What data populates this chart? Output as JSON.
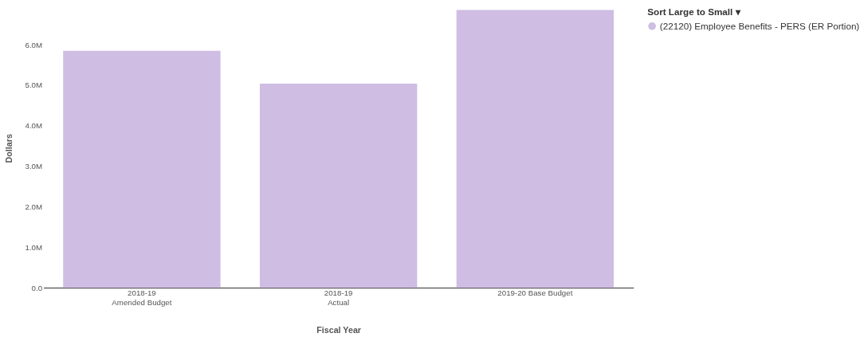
{
  "chart_data": {
    "type": "bar",
    "xlabel": "Fiscal Year",
    "ylabel": "Dollars",
    "legend_title": "Sort Large to Small ▾",
    "categories": [
      "2018-19\nAmended Budget",
      "2018-19\nActual",
      "2019-20 Base Budget"
    ],
    "series": [
      {
        "name": "(22120) Employee Benefits - PERS (ER Portion)",
        "color": "#cfbde3",
        "values": [
          5850000,
          5040000,
          6860000
        ]
      }
    ],
    "ylim": [
      0,
      6900000
    ],
    "yticks": [
      {
        "value": 0,
        "label": "0.0"
      },
      {
        "value": 1000000,
        "label": "1.0M"
      },
      {
        "value": 2000000,
        "label": "2.0M"
      },
      {
        "value": 3000000,
        "label": "3.0M"
      },
      {
        "value": 4000000,
        "label": "4.0M"
      },
      {
        "value": 5000000,
        "label": "5.0M"
      },
      {
        "value": 6000000,
        "label": "6.0M"
      }
    ],
    "grid": false,
    "legend": "top right"
  }
}
